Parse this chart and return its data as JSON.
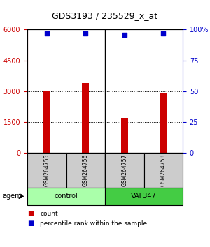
{
  "title": "GDS3193 / 235529_x_at",
  "samples": [
    "GSM264755",
    "GSM264756",
    "GSM264757",
    "GSM264758"
  ],
  "counts": [
    3000,
    3400,
    1700,
    2900
  ],
  "percentile_ranks": [
    97,
    97,
    96,
    97
  ],
  "ylim_left": [
    0,
    6000
  ],
  "yticks_left": [
    0,
    1500,
    3000,
    4500,
    6000
  ],
  "ylim_right": [
    0,
    100
  ],
  "yticks_right": [
    0,
    25,
    50,
    75,
    100
  ],
  "bar_color": "#cc0000",
  "dot_color": "#0000cc",
  "groups": [
    {
      "label": "control",
      "samples": [
        0,
        1
      ],
      "color": "#aaffaa"
    },
    {
      "label": "VAF347",
      "samples": [
        2,
        3
      ],
      "color": "#44cc44"
    }
  ],
  "agent_label": "agent",
  "legend_count_label": "count",
  "legend_pct_label": "percentile rank within the sample",
  "background_color": "#ffffff",
  "plot_bg_color": "#ffffff",
  "grid_color": "#000000",
  "tick_label_color_left": "#cc0000",
  "tick_label_color_right": "#0000cc"
}
